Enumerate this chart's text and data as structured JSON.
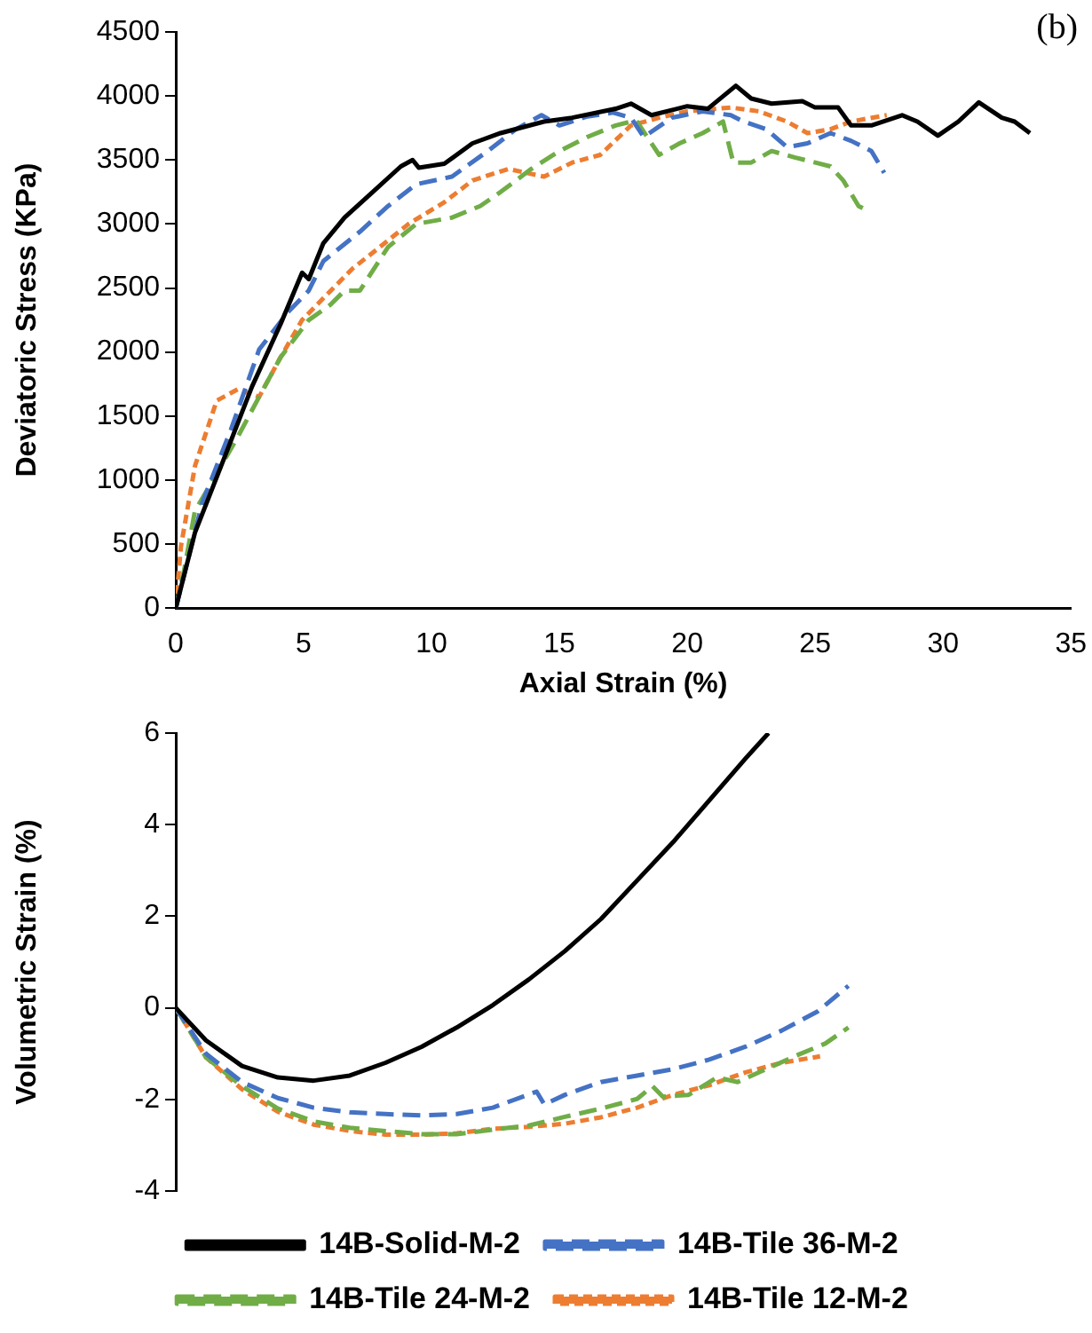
{
  "chart_data": [
    {
      "type": "line",
      "xlabel": "Axial Strain (%)",
      "ylabel": "Deviatoric Stress (KPa)",
      "annotations": [
        "(b)"
      ],
      "xlim": [
        0,
        35
      ],
      "xticks": [
        0,
        5,
        10,
        15,
        20,
        25,
        30,
        35
      ],
      "ylim": [
        0,
        4500
      ],
      "yticks": [
        0,
        500,
        1000,
        1500,
        2000,
        2500,
        3000,
        3500,
        4000,
        4500
      ],
      "grid": false,
      "legend": false,
      "marker": "none",
      "series": [
        {
          "color": "#000000",
          "line_style": "solid",
          "x": [
            0,
            0.75,
            1.87,
            2.98,
            4.1,
            4.94,
            5.2,
            5.77,
            6.6,
            7.7,
            8.8,
            9.26,
            9.5,
            10.5,
            11.6,
            12.7,
            14.4,
            15.5,
            17.2,
            17.8,
            18.6,
            20,
            20.8,
            21.9,
            22.5,
            23.3,
            24.5,
            25,
            25.9,
            26.4,
            27.2,
            28.4,
            29,
            29.8,
            30.6,
            31.4,
            32.3,
            32.8,
            33.4
          ],
          "values": [
            0,
            590,
            1160,
            1730,
            2220,
            2620,
            2570,
            2850,
            3050,
            3250,
            3450,
            3500,
            3440,
            3470,
            3630,
            3710,
            3800,
            3830,
            3900,
            3940,
            3850,
            3920,
            3900,
            4080,
            3980,
            3940,
            3960,
            3910,
            3910,
            3770,
            3770,
            3850,
            3800,
            3690,
            3800,
            3950,
            3830,
            3800,
            3710
          ]
        },
        {
          "color": "#4472c4",
          "line_style": "dashed",
          "x": [
            0,
            1.03,
            2.15,
            3.26,
            4.38,
            5.2,
            5.77,
            7.2,
            8.3,
            9.4,
            10.8,
            12.2,
            13.3,
            14.3,
            15,
            16.1,
            17.1,
            17.8,
            18.3,
            19.4,
            20.6,
            21.7,
            22.2,
            23.1,
            23.9,
            24.7,
            25.6,
            26.4,
            27.2,
            27.7
          ],
          "values": [
            0,
            820,
            1390,
            2020,
            2310,
            2480,
            2710,
            2940,
            3140,
            3310,
            3370,
            3570,
            3740,
            3850,
            3770,
            3840,
            3870,
            3830,
            3680,
            3830,
            3880,
            3850,
            3800,
            3740,
            3600,
            3630,
            3710,
            3650,
            3570,
            3400
          ]
        },
        {
          "color": "#70ad47",
          "line_style": "dashed",
          "x": [
            0,
            0.33,
            0.75,
            1.6,
            2.43,
            3.26,
            4.1,
            5.2,
            6.05,
            6.6,
            7.2,
            8.3,
            9.4,
            10.8,
            11.9,
            12.7,
            13.9,
            15,
            16.1,
            17.2,
            18,
            18.9,
            19.7,
            20.6,
            21.4,
            21.8,
            22.5,
            23.3,
            24.2,
            25.6,
            26.1,
            26.7,
            27.1
          ],
          "values": [
            0,
            300,
            760,
            1050,
            1340,
            1650,
            1960,
            2250,
            2370,
            2480,
            2480,
            2820,
            3000,
            3050,
            3140,
            3250,
            3430,
            3570,
            3680,
            3770,
            3810,
            3540,
            3630,
            3710,
            3800,
            3480,
            3480,
            3570,
            3520,
            3450,
            3340,
            3140,
            3100
          ]
        },
        {
          "color": "#ed7d31",
          "line_style": "dotted",
          "x": [
            0,
            0.2,
            0.75,
            1.6,
            2.43,
            3.26,
            4.1,
            4.94,
            5.77,
            6.9,
            7.98,
            9.1,
            10.5,
            11.6,
            13,
            14.4,
            15.5,
            16.6,
            17.8,
            18.9,
            20,
            21.7,
            22.8,
            23.9,
            24.7,
            25.6,
            26.4,
            27.8
          ],
          "values": [
            0,
            480,
            1110,
            1620,
            1710,
            1650,
            1960,
            2250,
            2420,
            2650,
            2820,
            3000,
            3170,
            3340,
            3430,
            3370,
            3480,
            3540,
            3770,
            3830,
            3880,
            3910,
            3880,
            3800,
            3710,
            3740,
            3800,
            3850
          ]
        }
      ]
    },
    {
      "type": "line",
      "ylabel": "Volumetric Strain (%)",
      "xlim": [
        0,
        35
      ],
      "ylim": [
        -4,
        6
      ],
      "yticks": [
        -4,
        -2,
        0,
        2,
        4,
        6
      ],
      "tick_labels": "y",
      "grid": false,
      "legend": "bottom",
      "marker": "none",
      "series": [
        {
          "name": "14B-Solid-M-2",
          "color": "#000000",
          "line_style": "solid",
          "x": [
            0,
            1.17,
            2.57,
            3.96,
            5.35,
            6.75,
            8.14,
            9.54,
            10.9,
            12.3,
            13.7,
            15.1,
            16.5,
            17.9,
            19.3,
            20.7,
            22.1,
            23
          ],
          "values": [
            0,
            -0.71,
            -1.27,
            -1.52,
            -1.59,
            -1.48,
            -1.2,
            -0.85,
            -0.43,
            0.06,
            0.62,
            1.24,
            1.94,
            2.78,
            3.62,
            4.53,
            5.44,
            6
          ]
        },
        {
          "name": "14B-Tile 36-M-2",
          "color": "#4472c4",
          "line_style": "dashed",
          "x": [
            0,
            1.17,
            2.57,
            3.96,
            5.35,
            6.75,
            8.14,
            9.54,
            10.9,
            12.3,
            14,
            14.3,
            15.1,
            16.5,
            17.9,
            19.3,
            20.7,
            22.1,
            23.5,
            24.9,
            26.1
          ],
          "values": [
            0,
            -1.0,
            -1.62,
            -1.97,
            -2.18,
            -2.28,
            -2.32,
            -2.35,
            -2.32,
            -2.18,
            -1.83,
            -2.11,
            -1.9,
            -1.62,
            -1.48,
            -1.34,
            -1.13,
            -0.85,
            -0.5,
            -0.08,
            0.48
          ]
        },
        {
          "name": "14B-Tile 24-M-2",
          "color": "#70ad47",
          "line_style": "dashed",
          "x": [
            0,
            1.17,
            2.57,
            3.96,
            5.35,
            6.75,
            8.14,
            9.54,
            10.9,
            12.3,
            13.7,
            15.1,
            16.5,
            17.9,
            18.5,
            18.9,
            19.9,
            21,
            21.8,
            22.9,
            24,
            25.2,
            26.1
          ],
          "values": [
            0,
            -1.08,
            -1.71,
            -2.2,
            -2.48,
            -2.62,
            -2.69,
            -2.76,
            -2.76,
            -2.66,
            -2.57,
            -2.38,
            -2.2,
            -1.99,
            -1.71,
            -1.94,
            -1.9,
            -1.52,
            -1.62,
            -1.34,
            -1.06,
            -0.78,
            -0.43
          ]
        },
        {
          "name": "14B-Tile 12-M-2",
          "color": "#ed7d31",
          "line_style": "dotted",
          "x": [
            0,
            1.17,
            2.57,
            3.96,
            5.35,
            6.75,
            8.14,
            9.54,
            10.9,
            12.3,
            13.7,
            15.1,
            16.5,
            17.9,
            19.3,
            20.7,
            22.1,
            23.5,
            25
          ],
          "values": [
            0,
            -1.08,
            -1.78,
            -2.27,
            -2.55,
            -2.69,
            -2.77,
            -2.77,
            -2.74,
            -2.64,
            -2.6,
            -2.53,
            -2.39,
            -2.18,
            -1.9,
            -1.69,
            -1.41,
            -1.2,
            -1.06
          ]
        }
      ]
    }
  ]
}
